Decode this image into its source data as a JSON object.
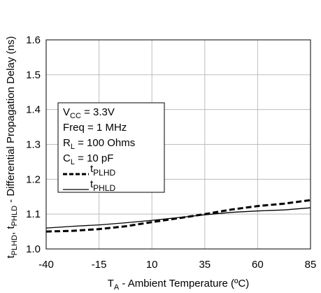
{
  "chart_data": {
    "type": "line",
    "title": "",
    "xlabel": {
      "main": "T",
      "sub": "A",
      "rest": " - Ambient Temperature (ºC)"
    },
    "ylabel": {
      "parts": [
        {
          "t": "t",
          "sub": false
        },
        {
          "t": "PLHD",
          "sub": true
        },
        {
          "t": ", t",
          "sub": false
        },
        {
          "t": "PHLD",
          "sub": true
        },
        {
          "t": " - Differential Propagation Delay (ns)",
          "sub": false
        }
      ]
    },
    "xlim": [
      -40,
      85
    ],
    "ylim": [
      1.0,
      1.6
    ],
    "x_ticks": [
      -40,
      -15,
      10,
      35,
      60,
      85
    ],
    "x_tick_labels": [
      "-40",
      "-15",
      "10",
      "35",
      "60",
      "85"
    ],
    "y_ticks": [
      1.0,
      1.1,
      1.2,
      1.3,
      1.4,
      1.5,
      1.6
    ],
    "y_tick_labels": [
      "1.0",
      "1.1",
      "1.2",
      "1.3",
      "1.4",
      "1.5",
      "1.6"
    ],
    "grid": true,
    "conditions": [
      {
        "label": "V",
        "sub": "CC",
        "value": " = 3.3V"
      },
      {
        "label": "Freq",
        "sub": "",
        "value": " = 1 MHz"
      },
      {
        "label": "R",
        "sub": "L",
        "value": "   = 100 Ohms"
      },
      {
        "label": "C",
        "sub": "L",
        "value": "   = 10 pF"
      }
    ],
    "series": [
      {
        "name": "PLHD",
        "style": "dashed",
        "x": [
          -40,
          -27.5,
          -15,
          -2.5,
          10,
          22.5,
          35,
          47.5,
          60,
          72.5,
          85
        ],
        "y": [
          1.05,
          1.052,
          1.057,
          1.065,
          1.077,
          1.088,
          1.1,
          1.113,
          1.123,
          1.13,
          1.14
        ]
      },
      {
        "name": "PHLD",
        "style": "solid",
        "x": [
          -40,
          -27.5,
          -15,
          -2.5,
          10,
          22.5,
          35,
          47.5,
          60,
          72.5,
          85
        ],
        "y": [
          1.06,
          1.065,
          1.069,
          1.075,
          1.082,
          1.09,
          1.098,
          1.105,
          1.109,
          1.112,
          1.118
        ]
      }
    ],
    "legend": {
      "placement": "left",
      "entry_prefix": "t"
    }
  }
}
